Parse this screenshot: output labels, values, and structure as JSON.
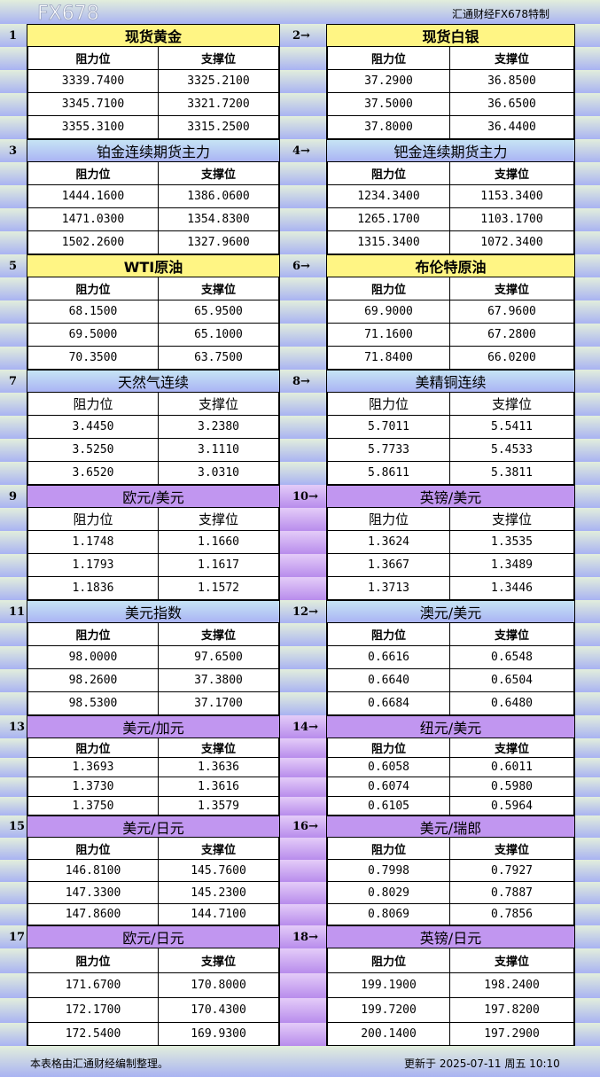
{
  "header": {
    "brand": "汇通财经FX678特制"
  },
  "footer": {
    "note": "本表格由汇通财经编制整理。",
    "updated": "更新于 2025-07-11 周五 10:10",
    "watermark": "FX678"
  },
  "columns": {
    "resistance": "阻力位",
    "support": "支撑位"
  },
  "colors": {
    "yellow": "#fff584",
    "blue": "#aab4f4",
    "purple": "#c196f0"
  },
  "sections": [
    {
      "num": "1",
      "title": "现货黄金",
      "color": "yellow",
      "rows": [
        [
          "3339.7400",
          "3325.2100"
        ],
        [
          "3345.7100",
          "3321.7200"
        ],
        [
          "3355.3100",
          "3315.2500"
        ]
      ]
    },
    {
      "num": "2→",
      "title": "现货白银",
      "color": "yellow",
      "rows": [
        [
          "37.2900",
          "36.8500"
        ],
        [
          "37.5000",
          "36.6500"
        ],
        [
          "37.8000",
          "36.4400"
        ]
      ]
    },
    {
      "num": "3",
      "title": "铂金连续期货主力",
      "color": "blue",
      "rows": [
        [
          "1444.1600",
          "1386.0600"
        ],
        [
          "1471.0300",
          "1354.8300"
        ],
        [
          "1502.2600",
          "1327.9600"
        ]
      ]
    },
    {
      "num": "4→",
      "title": "钯金连续期货主力",
      "color": "blue",
      "rows": [
        [
          "1234.3400",
          "1153.3400"
        ],
        [
          "1265.1700",
          "1103.1700"
        ],
        [
          "1315.3400",
          "1072.3400"
        ]
      ]
    },
    {
      "num": "5",
      "title": "WTI原油",
      "color": "yellow",
      "rows": [
        [
          "68.1500",
          "65.9500"
        ],
        [
          "69.5000",
          "65.1000"
        ],
        [
          "70.3500",
          "63.7500"
        ]
      ]
    },
    {
      "num": "6→",
      "title": "布伦特原油",
      "color": "yellow",
      "rows": [
        [
          "69.9000",
          "67.9600"
        ],
        [
          "71.1600",
          "67.2800"
        ],
        [
          "71.8400",
          "66.0200"
        ]
      ]
    },
    {
      "num": "7",
      "title": "天然气连续",
      "color": "blue",
      "rows": [
        [
          "3.4450",
          "3.2380"
        ],
        [
          "3.5250",
          "3.1110"
        ],
        [
          "3.6520",
          "3.0310"
        ]
      ]
    },
    {
      "num": "8→",
      "title": "美精铜连续",
      "color": "blue",
      "rows": [
        [
          "5.7011",
          "5.5411"
        ],
        [
          "5.7733",
          "5.4533"
        ],
        [
          "5.8611",
          "5.3811"
        ]
      ]
    },
    {
      "num": "9",
      "title": "欧元/美元",
      "color": "purple",
      "rows": [
        [
          "1.1748",
          "1.1660"
        ],
        [
          "1.1793",
          "1.1617"
        ],
        [
          "1.1836",
          "1.1572"
        ]
      ]
    },
    {
      "num": "10→",
      "title": "英镑/美元",
      "color": "purple",
      "rows": [
        [
          "1.3624",
          "1.3535"
        ],
        [
          "1.3667",
          "1.3489"
        ],
        [
          "1.3713",
          "1.3446"
        ]
      ]
    },
    {
      "num": "11",
      "title": "美元指数",
      "color": "blue",
      "rows": [
        [
          "98.0000",
          "97.6500"
        ],
        [
          "98.2600",
          "37.3800"
        ],
        [
          "98.5300",
          "37.1700"
        ]
      ]
    },
    {
      "num": "12→",
      "title": "澳元/美元",
      "color": "blue",
      "rows": [
        [
          "0.6616",
          "0.6548"
        ],
        [
          "0.6640",
          "0.6504"
        ],
        [
          "0.6684",
          "0.6480"
        ]
      ]
    },
    {
      "num": "13",
      "title": "美元/加元",
      "color": "purple",
      "rows": [
        [
          "1.3693",
          "1.3636"
        ],
        [
          "1.3730",
          "1.3616"
        ],
        [
          "1.3750",
          "1.3579"
        ]
      ]
    },
    {
      "num": "14→",
      "title": "纽元/美元",
      "color": "purple",
      "rows": [
        [
          "0.6058",
          "0.6011"
        ],
        [
          "0.6074",
          "0.5980"
        ],
        [
          "0.6105",
          "0.5964"
        ]
      ]
    },
    {
      "num": "15",
      "title": "美元/日元",
      "color": "purple",
      "rows": [
        [
          "146.8100",
          "145.7600"
        ],
        [
          "147.3300",
          "145.2300"
        ],
        [
          "147.8600",
          "144.7100"
        ]
      ]
    },
    {
      "num": "16→",
      "title": "美元/瑞郎",
      "color": "purple",
      "rows": [
        [
          "0.7998",
          "0.7927"
        ],
        [
          "0.8029",
          "0.7887"
        ],
        [
          "0.8069",
          "0.7856"
        ]
      ]
    },
    {
      "num": "17",
      "title": "欧元/日元",
      "color": "purple",
      "rows": [
        [
          "171.6700",
          "170.8000"
        ],
        [
          "172.1700",
          "170.4300"
        ],
        [
          "172.5400",
          "169.9300"
        ]
      ]
    },
    {
      "num": "18→",
      "title": "英镑/日元",
      "color": "purple",
      "rows": [
        [
          "199.1900",
          "198.2400"
        ],
        [
          "199.7200",
          "197.8200"
        ],
        [
          "200.1400",
          "197.2900"
        ]
      ]
    }
  ]
}
